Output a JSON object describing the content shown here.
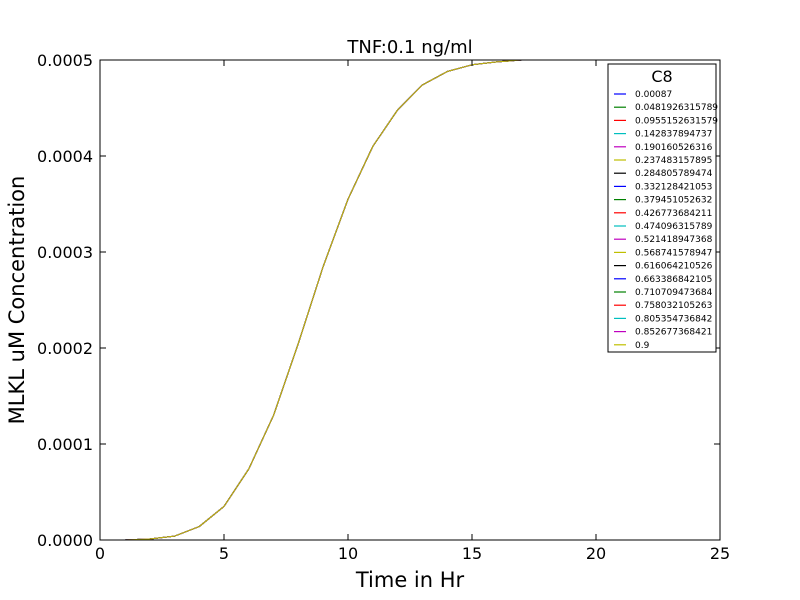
{
  "chart_data": {
    "type": "line",
    "title": "TNF:0.1 ng/ml",
    "xlabel": "Time in Hr",
    "ylabel": "MLKL uM Concentration",
    "xlim": [
      0,
      25
    ],
    "ylim": [
      0,
      0.0005
    ],
    "x_ticks": [
      "0",
      "5",
      "10",
      "15",
      "20",
      "25"
    ],
    "y_ticks": [
      "0.0000",
      "0.0001",
      "0.0002",
      "0.0003",
      "0.0004",
      "0.0005"
    ],
    "grid": false,
    "legend": {
      "title": "C8",
      "placement": "top-right"
    },
    "x": [
      0,
      1,
      2,
      3,
      4,
      5,
      6,
      7,
      8,
      9,
      10,
      11,
      12,
      13,
      14,
      15,
      16,
      17,
      17.5
    ],
    "series": [
      {
        "name": "0.00087",
        "color": "#0000ff",
        "values": [
          0,
          0,
          1e-06,
          4e-06,
          1.4e-05,
          3.5e-05,
          7.4e-05,
          0.00013,
          0.000205,
          0.000285,
          0.000355,
          0.00041,
          0.000448,
          0.000474,
          0.000488,
          0.000495,
          0.000498,
          0.0005,
          0.0005
        ]
      },
      {
        "name": "0.0481926315789",
        "color": "#008000",
        "values": [
          0,
          0,
          1e-06,
          4e-06,
          1.4e-05,
          3.5e-05,
          7.4e-05,
          0.00013,
          0.000205,
          0.000285,
          0.000355,
          0.00041,
          0.000448,
          0.000474,
          0.000488,
          0.000495,
          0.000498,
          0.0005,
          0.0005
        ]
      },
      {
        "name": "0.0955152631579",
        "color": "#ff0000",
        "values": [
          0,
          0,
          1e-06,
          4e-06,
          1.4e-05,
          3.5e-05,
          7.4e-05,
          0.00013,
          0.000205,
          0.000285,
          0.000355,
          0.00041,
          0.000448,
          0.000474,
          0.000488,
          0.000495,
          0.000498,
          0.0005,
          0.0005
        ]
      },
      {
        "name": "0.142837894737",
        "color": "#00bfbf",
        "values": [
          0,
          0,
          1e-06,
          4e-06,
          1.4e-05,
          3.5e-05,
          7.4e-05,
          0.00013,
          0.000205,
          0.000285,
          0.000355,
          0.00041,
          0.000448,
          0.000474,
          0.000488,
          0.000495,
          0.000498,
          0.0005,
          0.0005
        ]
      },
      {
        "name": "0.190160526316",
        "color": "#bf00bf",
        "values": [
          0,
          0,
          1e-06,
          4e-06,
          1.4e-05,
          3.5e-05,
          7.4e-05,
          0.00013,
          0.000205,
          0.000285,
          0.000355,
          0.00041,
          0.000448,
          0.000474,
          0.000488,
          0.000495,
          0.000498,
          0.0005,
          0.0005
        ]
      },
      {
        "name": "0.237483157895",
        "color": "#bfbf00",
        "values": [
          0,
          0,
          1e-06,
          4e-06,
          1.4e-05,
          3.5e-05,
          7.4e-05,
          0.00013,
          0.000205,
          0.000285,
          0.000355,
          0.00041,
          0.000448,
          0.000474,
          0.000488,
          0.000495,
          0.000498,
          0.0005,
          0.0005
        ]
      },
      {
        "name": "0.284805789474",
        "color": "#000000",
        "values": [
          0,
          0,
          1e-06,
          4e-06,
          1.4e-05,
          3.5e-05,
          7.4e-05,
          0.00013,
          0.000205,
          0.000285,
          0.000355,
          0.00041,
          0.000448,
          0.000474,
          0.000488,
          0.000495,
          0.000498,
          0.0005,
          0.0005
        ]
      },
      {
        "name": "0.332128421053",
        "color": "#0000ff",
        "values": [
          0,
          0,
          1e-06,
          4e-06,
          1.4e-05,
          3.5e-05,
          7.4e-05,
          0.00013,
          0.000205,
          0.000285,
          0.000355,
          0.00041,
          0.000448,
          0.000474,
          0.000488,
          0.000495,
          0.000498,
          0.0005,
          0.0005
        ]
      },
      {
        "name": "0.379451052632",
        "color": "#008000",
        "values": [
          0,
          0,
          1e-06,
          4e-06,
          1.4e-05,
          3.5e-05,
          7.4e-05,
          0.00013,
          0.000205,
          0.000285,
          0.000355,
          0.00041,
          0.000448,
          0.000474,
          0.000488,
          0.000495,
          0.000498,
          0.0005,
          0.0005
        ]
      },
      {
        "name": "0.426773684211",
        "color": "#ff0000",
        "values": [
          0,
          0,
          1e-06,
          4e-06,
          1.4e-05,
          3.5e-05,
          7.4e-05,
          0.00013,
          0.000205,
          0.000285,
          0.000355,
          0.00041,
          0.000448,
          0.000474,
          0.000488,
          0.000495,
          0.000498,
          0.0005,
          0.0005
        ]
      },
      {
        "name": "0.474096315789",
        "color": "#00bfbf",
        "values": [
          0,
          0,
          1e-06,
          4e-06,
          1.4e-05,
          3.5e-05,
          7.4e-05,
          0.00013,
          0.000205,
          0.000285,
          0.000355,
          0.00041,
          0.000448,
          0.000474,
          0.000488,
          0.000495,
          0.000498,
          0.0005,
          0.0005
        ]
      },
      {
        "name": "0.521418947368",
        "color": "#bf00bf",
        "values": [
          0,
          0,
          1e-06,
          4e-06,
          1.4e-05,
          3.5e-05,
          7.4e-05,
          0.00013,
          0.000205,
          0.000285,
          0.000355,
          0.00041,
          0.000448,
          0.000474,
          0.000488,
          0.000495,
          0.000498,
          0.0005,
          0.0005
        ]
      },
      {
        "name": "0.568741578947",
        "color": "#bfbf00",
        "values": [
          0,
          0,
          1e-06,
          4e-06,
          1.4e-05,
          3.5e-05,
          7.4e-05,
          0.00013,
          0.000205,
          0.000285,
          0.000355,
          0.00041,
          0.000448,
          0.000474,
          0.000488,
          0.000495,
          0.000498,
          0.0005,
          0.0005
        ]
      },
      {
        "name": "0.616064210526",
        "color": "#000000",
        "values": [
          0,
          0,
          1e-06,
          4e-06,
          1.4e-05,
          3.5e-05,
          7.4e-05,
          0.00013,
          0.000205,
          0.000285,
          0.000355,
          0.00041,
          0.000448,
          0.000474,
          0.000488,
          0.000495,
          0.000498,
          0.0005,
          0.0005
        ]
      },
      {
        "name": "0.663386842105",
        "color": "#0000ff",
        "values": [
          0,
          0,
          1e-06,
          4e-06,
          1.4e-05,
          3.5e-05,
          7.4e-05,
          0.00013,
          0.000205,
          0.000285,
          0.000355,
          0.00041,
          0.000448,
          0.000474,
          0.000488,
          0.000495,
          0.000498,
          0.0005,
          0.0005
        ]
      },
      {
        "name": "0.710709473684",
        "color": "#008000",
        "values": [
          0,
          0,
          1e-06,
          4e-06,
          1.4e-05,
          3.5e-05,
          7.4e-05,
          0.00013,
          0.000205,
          0.000285,
          0.000355,
          0.00041,
          0.000448,
          0.000474,
          0.000488,
          0.000495,
          0.000498,
          0.0005,
          0.0005
        ]
      },
      {
        "name": "0.758032105263",
        "color": "#ff0000",
        "values": [
          0,
          0,
          1e-06,
          4e-06,
          1.4e-05,
          3.5e-05,
          7.4e-05,
          0.00013,
          0.000205,
          0.000285,
          0.000355,
          0.00041,
          0.000448,
          0.000474,
          0.000488,
          0.000495,
          0.000498,
          0.0005,
          0.0005
        ]
      },
      {
        "name": "0.805354736842",
        "color": "#00bfbf",
        "values": [
          0,
          0,
          1e-06,
          4e-06,
          1.4e-05,
          3.5e-05,
          7.4e-05,
          0.00013,
          0.000205,
          0.000285,
          0.000355,
          0.00041,
          0.000448,
          0.000474,
          0.000488,
          0.000495,
          0.000498,
          0.0005,
          0.0005
        ]
      },
      {
        "name": "0.852677368421",
        "color": "#bf00bf",
        "values": [
          0,
          0,
          1e-06,
          4e-06,
          1.4e-05,
          3.5e-05,
          7.4e-05,
          0.00013,
          0.000205,
          0.000285,
          0.000355,
          0.00041,
          0.000448,
          0.000474,
          0.000488,
          0.000495,
          0.000498,
          0.0005,
          0.0005
        ]
      },
      {
        "name": "0.9",
        "color": "#bfbf00",
        "values": [
          0,
          0,
          1e-06,
          4e-06,
          1.4e-05,
          3.5e-05,
          7.4e-05,
          0.00013,
          0.000205,
          0.000285,
          0.000355,
          0.00041,
          0.000448,
          0.000474,
          0.000488,
          0.000495,
          0.000498,
          0.0005,
          0.0005
        ]
      }
    ]
  }
}
